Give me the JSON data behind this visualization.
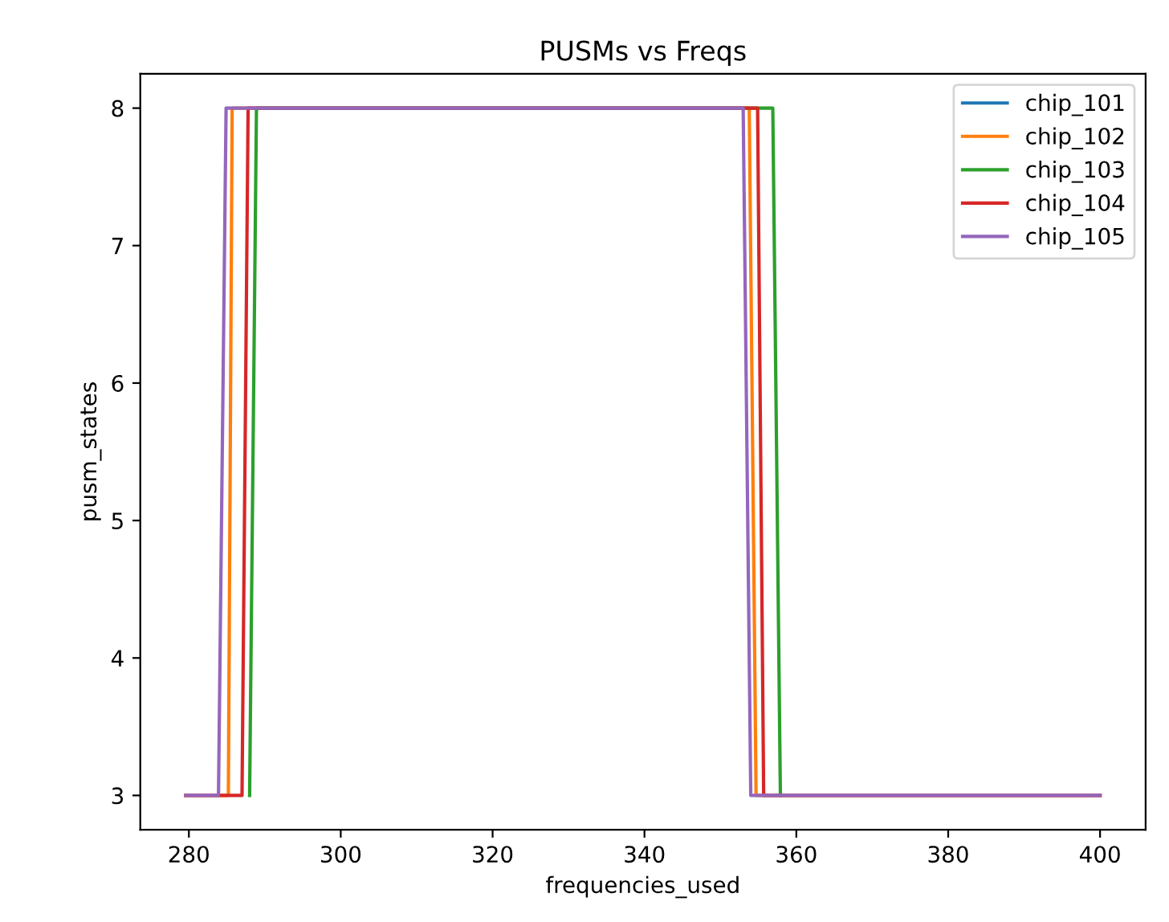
{
  "chart_data": {
    "type": "line",
    "title": "PUSMs vs Freqs",
    "xlabel": "frequencies_used",
    "ylabel": "pusm_states",
    "xlim": [
      273.6,
      406.0
    ],
    "xticks": [
      280,
      300,
      320,
      340,
      360,
      380,
      400
    ],
    "ylim": [
      2.75,
      8.25
    ],
    "yticks": [
      3,
      4,
      5,
      6,
      7,
      8
    ],
    "grid": false,
    "legend": "top right",
    "series": [
      {
        "name": "chip_101",
        "color": "#1f77b4"
      },
      {
        "name": "chip_102",
        "color": "#ff7f0e",
        "x": [
          279.6,
          285.2,
          285.7,
          353.8,
          354.7,
          400
        ],
        "values": [
          3,
          3,
          8,
          8,
          3,
          3
        ]
      },
      {
        "name": "chip_103",
        "color": "#2ca02c",
        "x": [
          288.0,
          288.9,
          356.9,
          357.9
        ],
        "values": [
          3,
          8,
          8,
          3
        ]
      },
      {
        "name": "chip_104",
        "color": "#d62728",
        "x": [
          279.6,
          287.0,
          287.8,
          354.9,
          355.7,
          400
        ],
        "values": [
          3,
          3,
          8,
          8,
          3,
          3
        ]
      },
      {
        "name": "chip_105",
        "color": "#9467bd",
        "x": [
          279.6,
          283.9,
          284.9,
          353.0,
          354.0,
          400
        ],
        "values": [
          3,
          3,
          8,
          8,
          3,
          3
        ]
      }
    ]
  }
}
